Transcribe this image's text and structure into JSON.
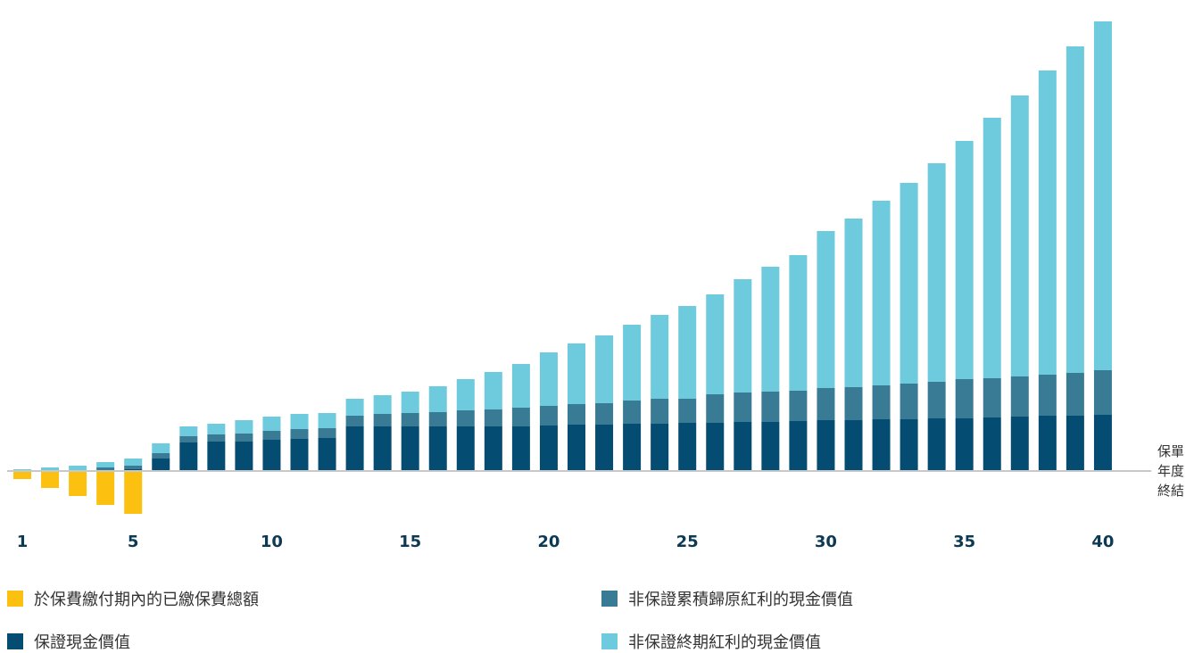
{
  "chart_data": {
    "type": "bar",
    "stacked": true,
    "categories": [
      1,
      2,
      3,
      4,
      5,
      6,
      7,
      8,
      9,
      10,
      11,
      12,
      13,
      14,
      15,
      16,
      17,
      18,
      19,
      20,
      21,
      22,
      23,
      24,
      25,
      26,
      27,
      28,
      29,
      30,
      31,
      32,
      33,
      34,
      35,
      36,
      37,
      38,
      39,
      40
    ],
    "x_tick_labels": [
      "1",
      "5",
      "10",
      "15",
      "20",
      "25",
      "30",
      "35",
      "40"
    ],
    "x_axis_label_lines": [
      "保單",
      "年度",
      "終結"
    ],
    "legend_placement": "bottom",
    "series": [
      {
        "name": "於保費繳付期內的已繳保費總額",
        "color": "#fcc010",
        "values": [
          -9,
          -19,
          -28,
          -38,
          -48,
          0,
          0,
          0,
          0,
          0,
          0,
          0,
          0,
          0,
          0,
          0,
          0,
          0,
          0,
          0,
          0,
          0,
          0,
          0,
          0,
          0,
          0,
          0,
          0,
          0,
          0,
          0,
          0,
          0,
          0,
          0,
          0,
          0,
          0,
          0
        ]
      },
      {
        "name": "保證現金價值",
        "color": "#044c71",
        "values": [
          0,
          0,
          0,
          1,
          2,
          14,
          32,
          33,
          33,
          35,
          36,
          37,
          50,
          50,
          50,
          50,
          50,
          50,
          50,
          51,
          52,
          52,
          53,
          53,
          54,
          54,
          55,
          55,
          56,
          57,
          57,
          58,
          58,
          59,
          59,
          60,
          61,
          62,
          62,
          63
        ]
      },
      {
        "name": "非保證累積歸原紅利的現金價值",
        "color": "#397b94",
        "values": [
          1,
          1,
          1,
          3,
          4,
          6,
          7,
          8,
          9,
          10,
          11,
          11,
          12,
          14,
          15,
          16,
          18,
          19,
          21,
          22,
          23,
          24,
          26,
          28,
          27,
          32,
          33,
          34,
          34,
          36,
          37,
          38,
          40,
          41,
          44,
          44,
          45,
          46,
          48,
          50
        ]
      },
      {
        "name": "非保證終期紅利的現金價值",
        "color": "#6ecadd",
        "values": [
          1,
          3,
          5,
          6,
          8,
          11,
          11,
          12,
          15,
          16,
          17,
          17,
          19,
          21,
          24,
          29,
          35,
          42,
          49,
          60,
          68,
          76,
          85,
          94,
          104,
          112,
          127,
          140,
          152,
          176,
          189,
          207,
          225,
          245,
          267,
          292,
          315,
          341,
          366,
          391
        ]
      }
    ]
  }
}
